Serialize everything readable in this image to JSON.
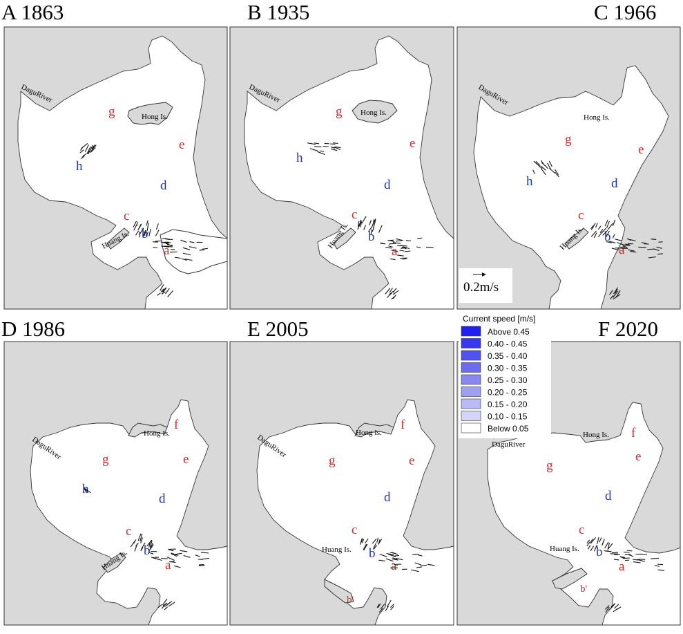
{
  "panels": [
    {
      "id": "A",
      "title": "A 1863",
      "places": [
        "DaguRiver",
        "Hong Is.",
        "Huang Is."
      ],
      "labels": [
        "g",
        "e",
        "h",
        "d",
        "c",
        "b",
        "a"
      ]
    },
    {
      "id": "B",
      "title": "B 1935",
      "places": [
        "DaguRiver",
        "Hong Is.",
        "Huang Is."
      ],
      "labels": [
        "g",
        "e",
        "h",
        "d",
        "c",
        "b",
        "a"
      ]
    },
    {
      "id": "C",
      "title": "C 1966",
      "places": [
        "DaguRiver",
        "Hong Is.",
        "Huang Is."
      ],
      "labels": [
        "g",
        "e",
        "h",
        "d",
        "c",
        "b",
        "a"
      ]
    },
    {
      "id": "D",
      "title": "D 1986",
      "places": [
        "DaguRiver",
        "Hong Is.",
        "Huang Is."
      ],
      "labels": [
        "f",
        "g",
        "e",
        "h",
        "d",
        "c",
        "b",
        "a"
      ]
    },
    {
      "id": "E",
      "title": "E 2005",
      "places": [
        "Hong Is.",
        "DaguRiver",
        "Huang Is."
      ],
      "labels": [
        "f",
        "g",
        "e",
        "d",
        "c",
        "b",
        "a",
        "b'"
      ]
    },
    {
      "id": "F",
      "title": "F 2020",
      "places": [
        "Hong Is.",
        "DaguRiver",
        "Huang Is."
      ],
      "labels": [
        "f",
        "g",
        "e",
        "d",
        "c",
        "b",
        "a",
        "b'"
      ]
    }
  ],
  "scale": {
    "label": "0.2m/s"
  },
  "legend": {
    "title": "Current speed [m/s]",
    "items": [
      {
        "label": "Above 0.45",
        "color": "#2020f0"
      },
      {
        "label": "0.40 - 0.45",
        "color": "#3838f0"
      },
      {
        "label": "0.35 - 0.40",
        "color": "#5252ee"
      },
      {
        "label": "0.30 - 0.35",
        "color": "#6c6cee"
      },
      {
        "label": "0.25 - 0.30",
        "color": "#8888f0"
      },
      {
        "label": "0.20 - 0.25",
        "color": "#a0a0f2"
      },
      {
        "label": "0.15 - 0.20",
        "color": "#babaf4"
      },
      {
        "label": "0.10 - 0.15",
        "color": "#d4d4f8"
      },
      {
        "label": "Below 0.05",
        "color": "#ffffff"
      }
    ]
  },
  "colors": {
    "land": "#d9d9d9",
    "sea": "#ffffff",
    "label_red": "#d22c2c",
    "label_blue": "#2233bb",
    "vector": "#111111"
  }
}
